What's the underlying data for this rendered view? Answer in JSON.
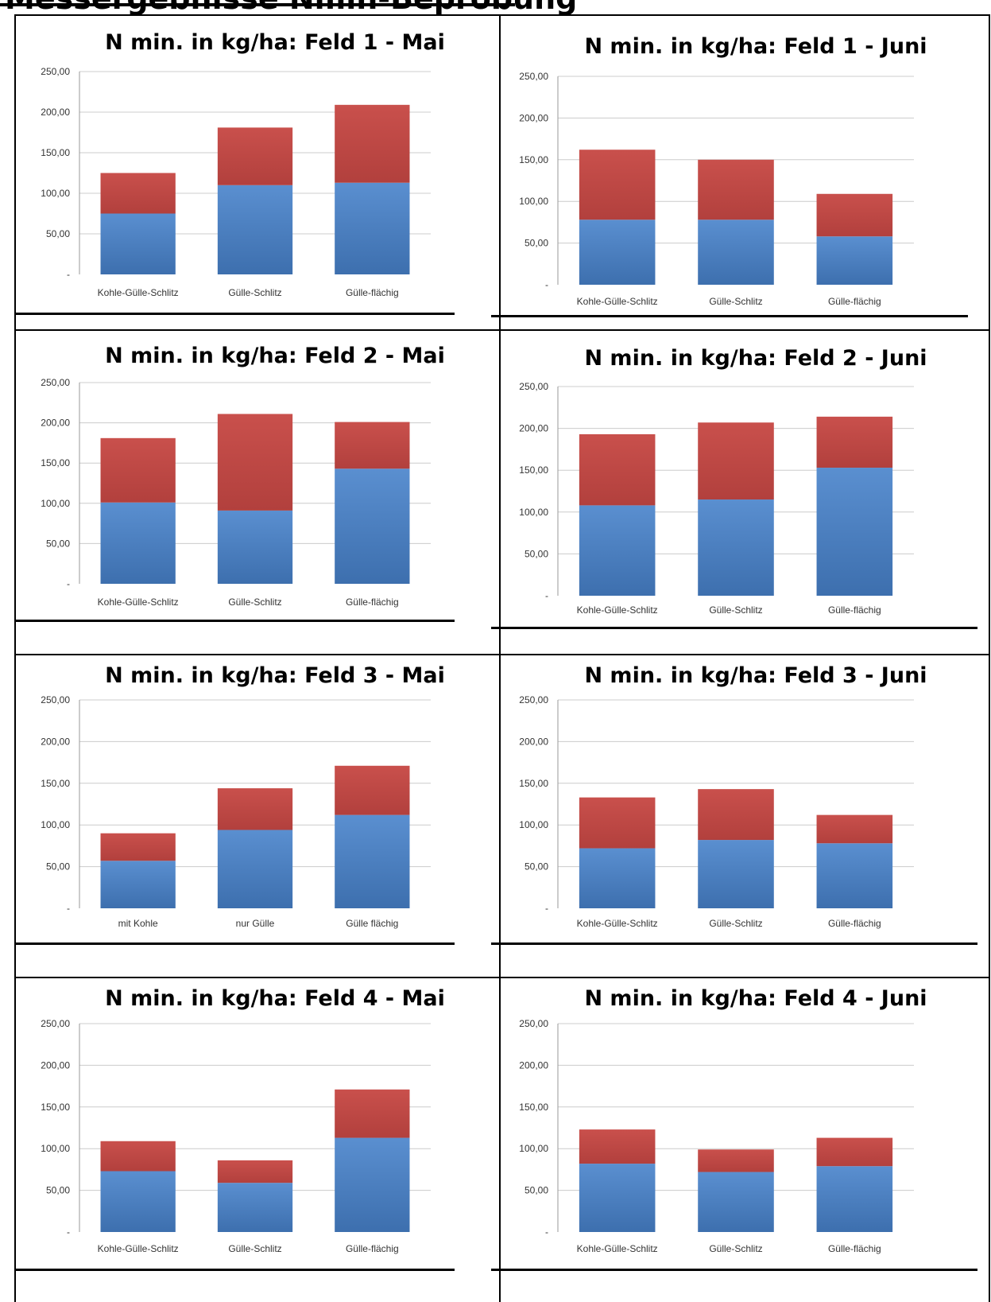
{
  "page": {
    "heading": "Messergebnisse Nmin-Beprobung"
  },
  "colors": {
    "bottom_series": "#4a7ebb",
    "top_series": "#be4b48",
    "gridline": "#cccccc",
    "axis": "#999999"
  },
  "y_tick_labels": [
    "250,00",
    "200,00",
    "150,00",
    "100,00",
    "50,00",
    "-"
  ],
  "chart_data": [
    {
      "type": "bar",
      "stacked": true,
      "title": "N min. in kg/ha: Feld 1 - Mai",
      "categories": [
        "Kohle-Gülle-Schlitz",
        "Gülle-Schlitz",
        "Gülle-flächig"
      ],
      "series": [
        {
          "values": [
            75,
            110,
            113
          ],
          "color": "#4a7ebb"
        },
        {
          "values": [
            50,
            71,
            96
          ],
          "color": "#be4b48"
        }
      ],
      "ylim": [
        0,
        250
      ],
      "grid": true
    },
    {
      "type": "bar",
      "stacked": true,
      "title": "N min. in kg/ha: Feld 1 - Juni",
      "categories": [
        "Kohle-Gülle-Schlitz",
        "Gülle-Schlitz",
        "Gülle-flächig"
      ],
      "series": [
        {
          "values": [
            78,
            78,
            58
          ],
          "color": "#4a7ebb"
        },
        {
          "values": [
            84,
            72,
            51
          ],
          "color": "#be4b48"
        }
      ],
      "ylim": [
        0,
        250
      ],
      "grid": true
    },
    {
      "type": "bar",
      "stacked": true,
      "title": "N min. in kg/ha: Feld 2 - Mai",
      "categories": [
        "Kohle-Gülle-Schlitz",
        "Gülle-Schlitz",
        "Gülle-flächig"
      ],
      "series": [
        {
          "values": [
            101,
            91,
            143
          ],
          "color": "#4a7ebb"
        },
        {
          "values": [
            80,
            120,
            58
          ],
          "color": "#be4b48"
        }
      ],
      "ylim": [
        0,
        250
      ],
      "grid": true
    },
    {
      "type": "bar",
      "stacked": true,
      "title": "N min. in kg/ha: Feld 2 - Juni",
      "categories": [
        "Kohle-Gülle-Schlitz",
        "Gülle-Schlitz",
        "Gülle-flächig"
      ],
      "series": [
        {
          "values": [
            108,
            115,
            153
          ],
          "color": "#4a7ebb"
        },
        {
          "values": [
            85,
            92,
            61
          ],
          "color": "#be4b48"
        }
      ],
      "ylim": [
        0,
        250
      ],
      "grid": true
    },
    {
      "type": "bar",
      "stacked": true,
      "title": "N min. in kg/ha: Feld 3 - Mai",
      "categories": [
        "mit Kohle",
        "nur Gülle",
        "Gülle flächig"
      ],
      "series": [
        {
          "values": [
            57,
            94,
            112
          ],
          "color": "#4a7ebb"
        },
        {
          "values": [
            33,
            50,
            59
          ],
          "color": "#be4b48"
        }
      ],
      "ylim": [
        0,
        250
      ],
      "grid": true
    },
    {
      "type": "bar",
      "stacked": true,
      "title": "N min. in kg/ha: Feld 3 - Juni",
      "categories": [
        "Kohle-Gülle-Schlitz",
        "Gülle-Schlitz",
        "Gülle-flächig"
      ],
      "series": [
        {
          "values": [
            72,
            82,
            78
          ],
          "color": "#4a7ebb"
        },
        {
          "values": [
            61,
            61,
            34
          ],
          "color": "#be4b48"
        }
      ],
      "ylim": [
        0,
        250
      ],
      "grid": true
    },
    {
      "type": "bar",
      "stacked": true,
      "title": "N min. in kg/ha: Feld 4 - Mai",
      "categories": [
        "Kohle-Gülle-Schlitz",
        "Gülle-Schlitz",
        "Gülle-flächig"
      ],
      "series": [
        {
          "values": [
            73,
            59,
            113
          ],
          "color": "#4a7ebb"
        },
        {
          "values": [
            36,
            27,
            58
          ],
          "color": "#be4b48"
        }
      ],
      "ylim": [
        0,
        250
      ],
      "grid": true
    },
    {
      "type": "bar",
      "stacked": true,
      "title": "N min. in kg/ha: Feld 4 - Juni",
      "categories": [
        "Kohle-Gülle-Schlitz",
        "Gülle-Schlitz",
        "Gülle-flächig"
      ],
      "series": [
        {
          "values": [
            82,
            72,
            79
          ],
          "color": "#4a7ebb"
        },
        {
          "values": [
            41,
            27,
            34
          ],
          "color": "#be4b48"
        }
      ],
      "ylim": [
        0,
        250
      ],
      "grid": true
    }
  ]
}
